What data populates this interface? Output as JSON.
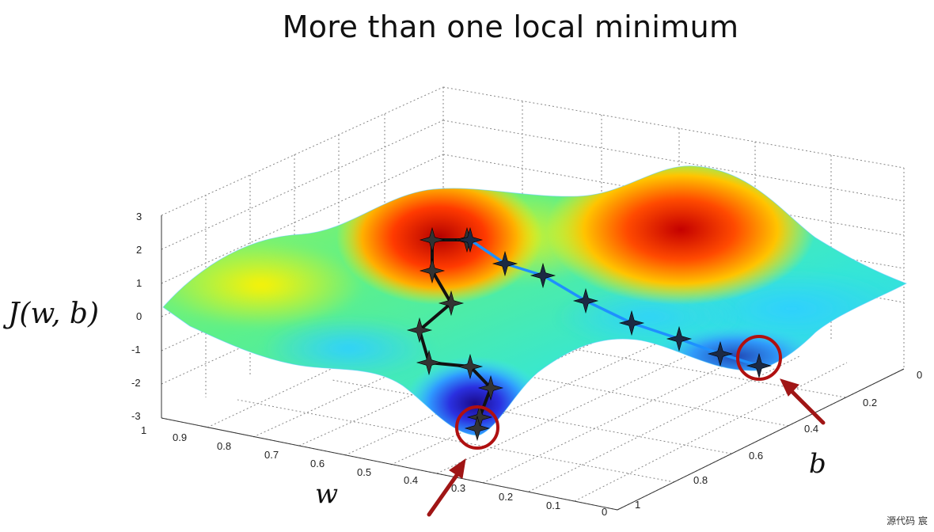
{
  "slide": {
    "title": "More than one local minimum",
    "cost_label": "J(w, b)",
    "w_label": "w",
    "b_label": "b",
    "watermark": "源代码   宸"
  },
  "chart_data": {
    "type": "surface3d",
    "title": "More than one local minimum",
    "zlabel": "J(w, b)",
    "xlabel": "w",
    "ylabel": "b",
    "w_ticks": [
      "1",
      "0.9",
      "0.8",
      "0.7",
      "0.6",
      "0.5",
      "0.4",
      "0.3",
      "0.2",
      "0.1",
      "0"
    ],
    "b_ticks": [
      "0",
      "0.2",
      "0.4",
      "0.6",
      "0.8",
      "1"
    ],
    "z_ticks": [
      "3",
      "2",
      "1",
      "0",
      "-1",
      "-2",
      "-3"
    ],
    "zlim": [
      -3,
      3
    ],
    "grid": true,
    "colormap": "jet",
    "descent_paths": [
      {
        "color": "#111111",
        "marker_color": "#333333",
        "steps": 10,
        "ends_in": "local minimum (deep basin)"
      },
      {
        "color": "#1e90ff",
        "marker_color": "#1c2a44",
        "steps": 8,
        "ends_in": "local minimum (shallow basin)"
      }
    ],
    "annotations": {
      "minimum_circle_color": "#b01010",
      "arrow_color": "#a01515"
    }
  }
}
